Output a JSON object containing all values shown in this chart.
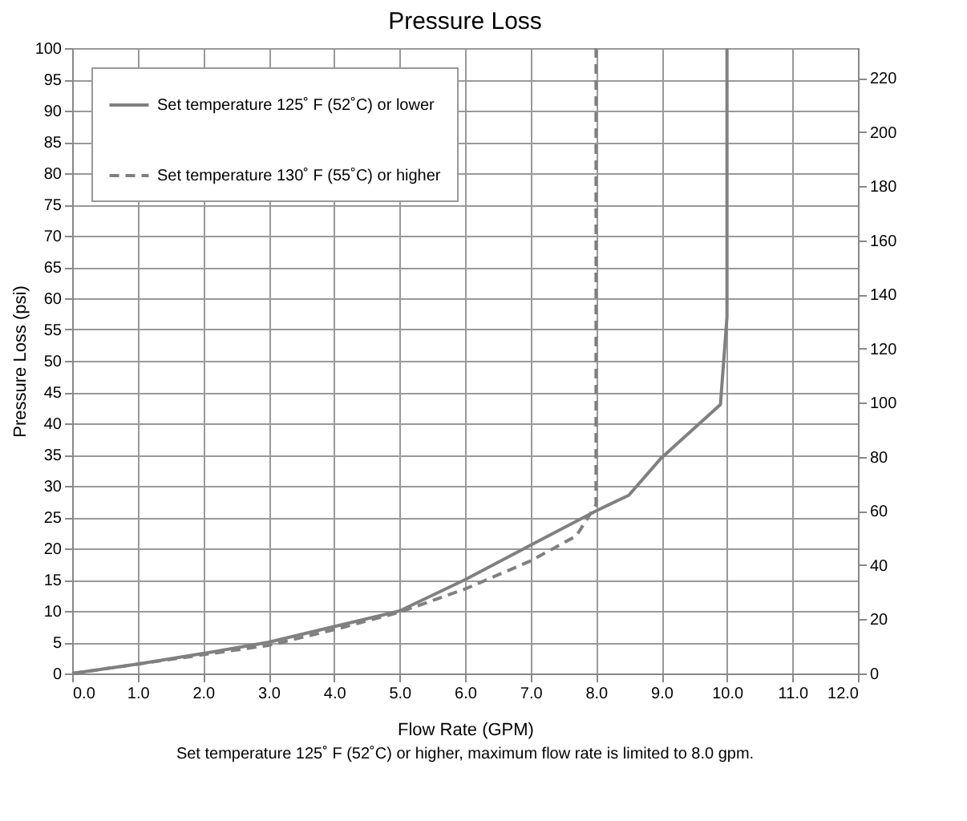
{
  "chart_data": {
    "type": "line",
    "title": "Pressure Loss",
    "xlabel": "Flow Rate  (GPM)",
    "ylabel": "Pressure Loss (psi)",
    "annotations": [
      "Set temperature 125˚ F (52˚C) or higher, maximum flow rate is limited to 8.0 gpm."
    ],
    "series": [
      {
        "name": "Set temperature 125˚ F (52˚C) or lower",
        "color": "#808080",
        "line_style": "solid",
        "x": [
          0,
          1,
          2,
          3,
          4,
          5,
          6,
          7,
          8,
          8.5,
          9,
          9.9,
          10,
          10
        ],
        "values": [
          0,
          1.5,
          3.2,
          5,
          7.5,
          10,
          15,
          20.5,
          26,
          28.5,
          34.5,
          43,
          57,
          100
        ]
      },
      {
        "name": "Set temperature 130˚ F (55˚C) or higher",
        "color": "#808080",
        "line_style": "dashed",
        "x": [
          0,
          1,
          2,
          3,
          4,
          5,
          6,
          7,
          7.7,
          8,
          8
        ],
        "values": [
          0,
          1.5,
          3,
          4.5,
          7,
          9.8,
          13.5,
          18,
          22,
          27,
          100
        ]
      }
    ],
    "xlim": [
      0,
      12
    ],
    "xticks": [
      {
        "value": 0,
        "label": "0.0"
      },
      {
        "value": 1,
        "label": "1.0"
      },
      {
        "value": 2,
        "label": "2.0"
      },
      {
        "value": 3,
        "label": "3.0"
      },
      {
        "value": 4,
        "label": "4.0"
      },
      {
        "value": 5,
        "label": "5.0"
      },
      {
        "value": 6,
        "label": "6.0"
      },
      {
        "value": 7,
        "label": "7.0"
      },
      {
        "value": 8,
        "label": "8.0"
      },
      {
        "value": 9,
        "label": "9.0"
      },
      {
        "value": 10,
        "label": "10.0"
      },
      {
        "value": 11,
        "label": "11.0"
      },
      {
        "value": 12,
        "label": "12.0"
      }
    ],
    "ylim": [
      0,
      100
    ],
    "yticks": [
      0,
      5,
      10,
      15,
      20,
      25,
      30,
      35,
      40,
      45,
      50,
      55,
      60,
      65,
      70,
      75,
      80,
      85,
      90,
      95,
      100
    ],
    "y2lim": [
      0,
      231
    ],
    "y2ticks": [
      0,
      20,
      40,
      60,
      80,
      100,
      120,
      140,
      160,
      180,
      200,
      220
    ],
    "grid": true,
    "legend": "top left"
  }
}
